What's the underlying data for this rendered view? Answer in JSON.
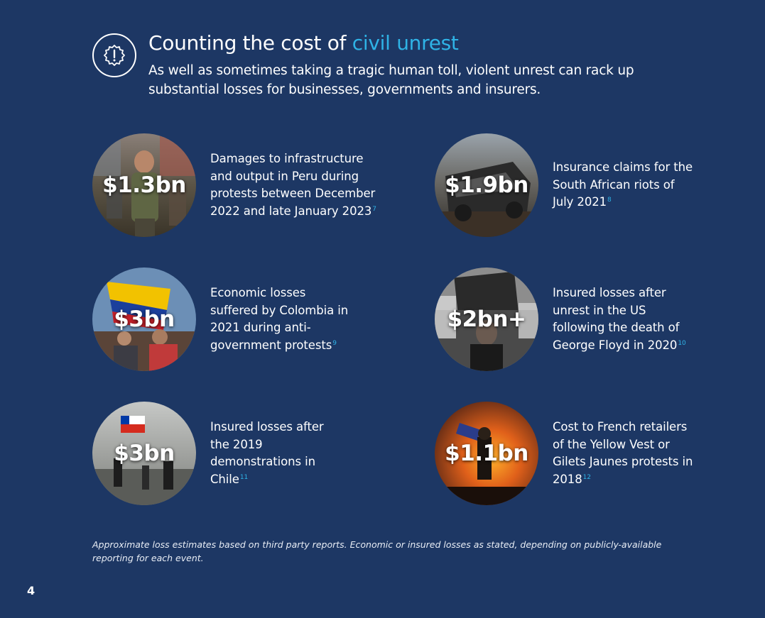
{
  "header": {
    "icon": "alert-badge-icon",
    "title_main": "Counting the cost of ",
    "title_accent": "civil unrest",
    "subtitle": "As well as sometimes taking a tragic human toll, violent unrest can rack up substantial losses for businesses, governments and insurers."
  },
  "stats": [
    {
      "value": "$1.3bn",
      "description": "Damages to infrastructure and output in Peru during protests between December 2022 and late January 2023",
      "ref": "7"
    },
    {
      "value": "$1.9bn",
      "description": "Insurance claims for the South African riots of July 2021",
      "ref": "8"
    },
    {
      "value": "$3bn",
      "description": "Economic losses suffered by Colombia in 2021 during anti-government protests",
      "ref": "9"
    },
    {
      "value": "$2bn+",
      "description": "Insured losses after unrest in the US following the death of George Floyd in 2020",
      "ref": "10"
    },
    {
      "value": "$3bn",
      "description": "Insured losses after the 2019 demonstrations in Chile",
      "ref": "11"
    },
    {
      "value": "$1.1bn",
      "description": "Cost to French retailers of the Yellow Vest or Gilets Jaunes protests in 2018",
      "ref": "12"
    }
  ],
  "footnote": "Approximate loss estimates based on third party reports. Economic or insured losses as stated, depending on publicly-available reporting for each event.",
  "page_number": "4",
  "colors": {
    "background": "#1d3764",
    "accent": "#2fb3e6",
    "text": "#ffffff"
  }
}
